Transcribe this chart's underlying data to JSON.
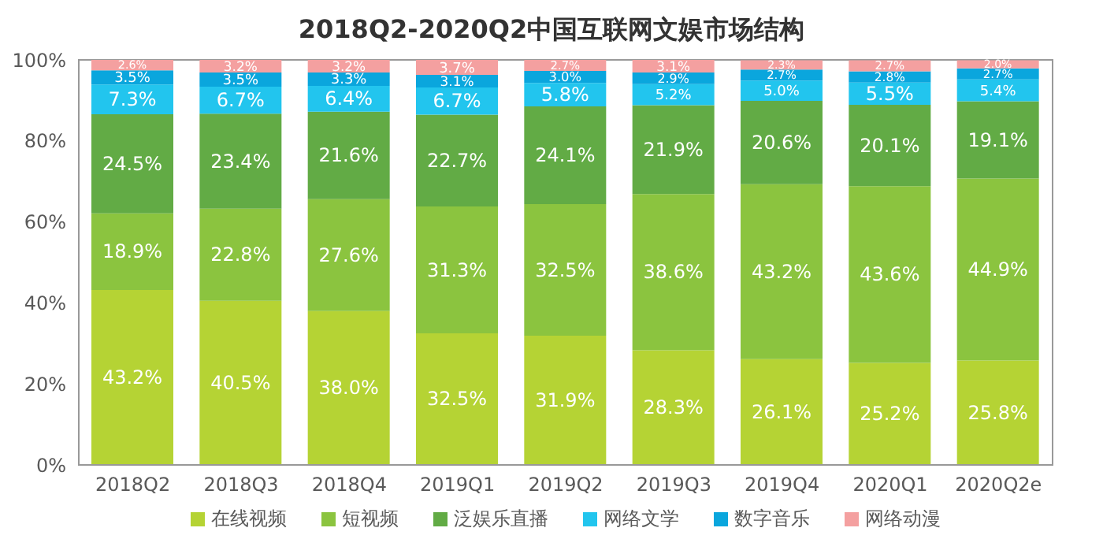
{
  "chart_data": {
    "type": "bar",
    "stacked": true,
    "title": "2018Q2-2020Q2中国互联网文娱市场结构",
    "categories": [
      "2018Q2",
      "2018Q3",
      "2018Q4",
      "2019Q1",
      "2019Q2",
      "2019Q3",
      "2019Q4",
      "2020Q1",
      "2020Q2e"
    ],
    "series": [
      {
        "name": "在线视频",
        "color": "#b5d334",
        "values": [
          43.2,
          40.5,
          38.0,
          32.5,
          31.9,
          28.3,
          26.1,
          25.2,
          25.8
        ],
        "value_labels": [
          "43.2%",
          "40.5%",
          "38.0%",
          "32.5%",
          "31.9%",
          "28.3%",
          "26.1%",
          "25.2%",
          "25.8%"
        ]
      },
      {
        "name": "短视频",
        "color": "#8bc43f",
        "values": [
          18.9,
          22.8,
          27.6,
          31.3,
          32.5,
          38.6,
          43.2,
          43.6,
          44.9
        ],
        "value_labels": [
          "18.9%",
          "22.8%",
          "27.6%",
          "31.3%",
          "32.5%",
          "38.6%",
          "43.2%",
          "43.6%",
          "44.9%"
        ]
      },
      {
        "name": "泛娱乐直播",
        "color": "#62ab45",
        "values": [
          24.5,
          23.4,
          21.6,
          22.7,
          24.1,
          21.9,
          20.6,
          20.1,
          19.1
        ],
        "value_labels": [
          "24.5%",
          "23.4%",
          "21.6%",
          "22.7%",
          "24.1%",
          "21.9%",
          "20.6%",
          "20.1%",
          "19.1%"
        ]
      },
      {
        "name": "网络文学",
        "color": "#22c5ee",
        "values": [
          7.3,
          6.7,
          6.4,
          6.7,
          5.8,
          5.2,
          5.0,
          5.5,
          5.4
        ],
        "value_labels": [
          "7.3%",
          "6.7%",
          "6.4%",
          "6.7%",
          "5.8%",
          "5.2%",
          "5.0%",
          "5.5%",
          "5.4%"
        ]
      },
      {
        "name": "数字音乐",
        "color": "#0aa6dd",
        "values": [
          3.5,
          3.5,
          3.3,
          3.1,
          3.0,
          2.9,
          2.7,
          2.8,
          2.7
        ],
        "value_labels": [
          "3.5%",
          "3.5%",
          "3.3%",
          "3.1%",
          "3.0%",
          "2.9%",
          "2.7%",
          "2.8%",
          "2.7%"
        ]
      },
      {
        "name": "网络动漫",
        "color": "#f4a0a0",
        "values": [
          2.6,
          3.2,
          3.2,
          3.7,
          2.7,
          3.1,
          2.3,
          2.7,
          2.0
        ],
        "value_labels": [
          "2.6%",
          "3.2%",
          "3.2%",
          "3.7%",
          "2.7%",
          "3.1%",
          "2.3%",
          "2.7%",
          "2.0%"
        ]
      }
    ],
    "ylim": [
      0,
      100
    ],
    "yticks": [
      {
        "value": 0,
        "label": "0%"
      },
      {
        "value": 20,
        "label": "20%"
      },
      {
        "value": 40,
        "label": "40%"
      },
      {
        "value": 60,
        "label": "60%"
      },
      {
        "value": 80,
        "label": "80%"
      },
      {
        "value": 100,
        "label": "100%"
      }
    ],
    "grid": false,
    "legend": "bottom"
  }
}
